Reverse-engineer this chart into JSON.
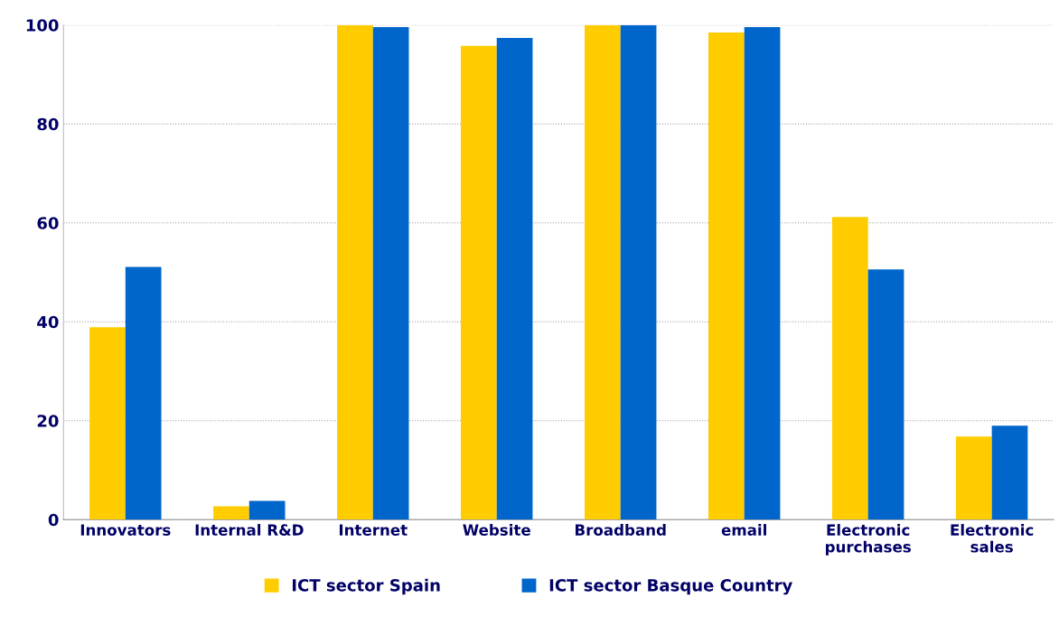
{
  "chart_data": {
    "type": "bar",
    "categories": [
      "Innovators",
      "Internal R&D",
      "Internet",
      "Website",
      "Broadband",
      "email",
      "Electronic\npurchases",
      "Electronic\nsales"
    ],
    "series": [
      {
        "name": "ICT sector Spain",
        "color": "#ffcc00",
        "values": [
          38.9,
          2.7,
          100,
          95.8,
          100,
          98.5,
          61.2,
          16.8
        ]
      },
      {
        "name": "ICT sector Basque Country",
        "color": "#0066cc",
        "values": [
          51.1,
          3.8,
          99.6,
          97.4,
          100,
          99.6,
          50.6,
          19.0
        ]
      }
    ],
    "ylim": [
      0,
      100
    ],
    "yticks": [
      0,
      20,
      40,
      60,
      80,
      100
    ],
    "grid": "y",
    "legend": "bottom"
  }
}
